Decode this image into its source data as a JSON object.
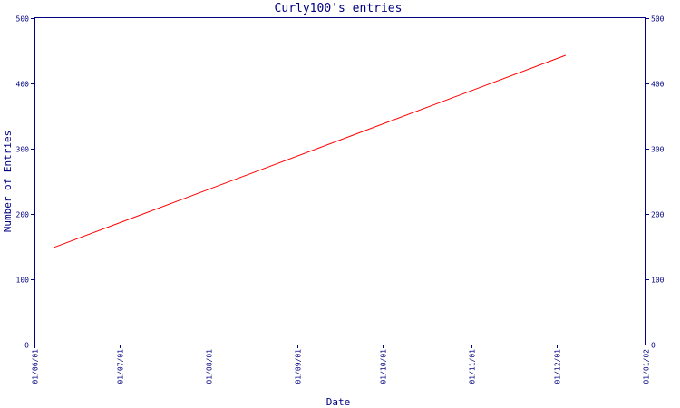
{
  "chart_data": {
    "type": "line",
    "title": "Curly100's entries",
    "xlabel": "Date",
    "ylabel": "Number of Entries",
    "x_tick_labels": [
      "01/06/01",
      "01/07/01",
      "01/08/01",
      "01/09/01",
      "01/10/01",
      "01/11/01",
      "01/12/01",
      "01/01/02"
    ],
    "x_tick_dates": [
      "2001-06-01",
      "2001-07-01",
      "2001-08-01",
      "2001-09-01",
      "2001-10-01",
      "2001-11-01",
      "2001-12-01",
      "2002-01-01"
    ],
    "xlim": [
      "2001-06-01",
      "2002-01-01"
    ],
    "y_ticks": [
      0,
      100,
      200,
      300,
      400,
      500
    ],
    "ylim": [
      0,
      500
    ],
    "grid": false,
    "right_axis_mirrored": true,
    "series": [
      {
        "color": "#ff0000",
        "x": [
          "2001-06-08",
          "2001-12-04"
        ],
        "y": [
          149,
          443
        ]
      }
    ]
  },
  "colors": {
    "axis": "#000080",
    "text": "#000080",
    "line": "#ff0000",
    "background": "#ffffff"
  }
}
